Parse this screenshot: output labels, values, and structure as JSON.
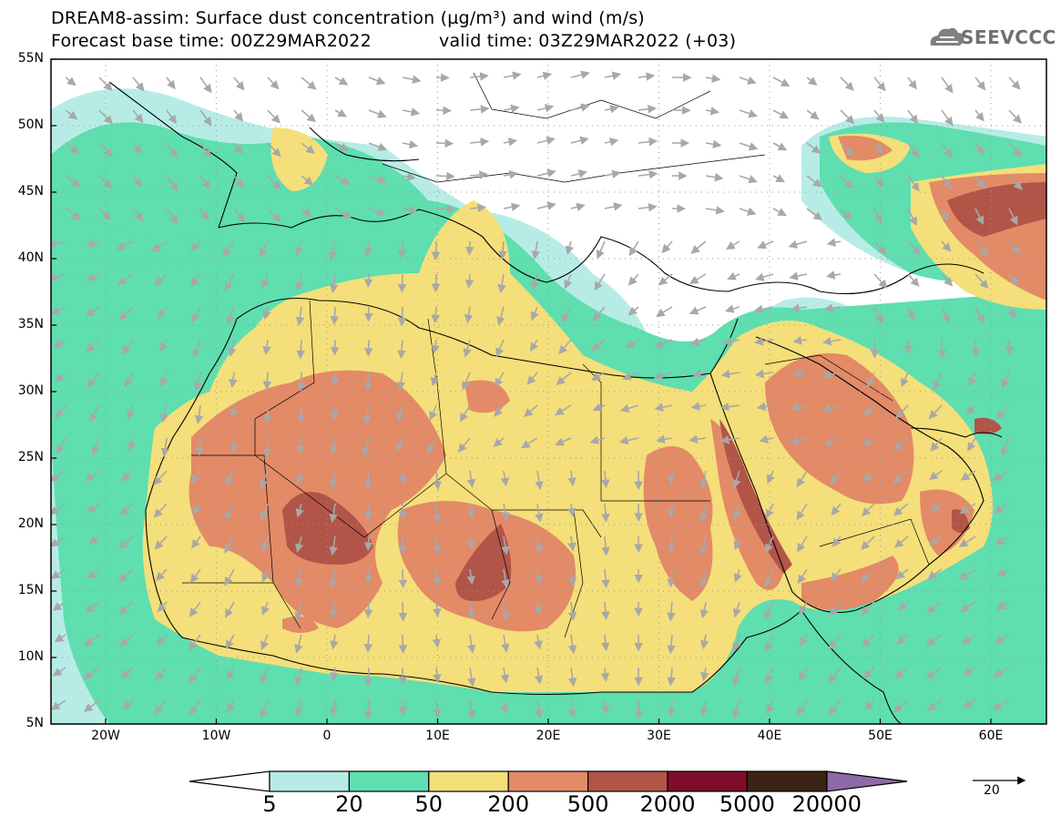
{
  "header": {
    "line1": "DREAM8-assim: Surface dust concentration (µg/m³) and wind (m/s)",
    "line2_left": "Forecast base time: 00Z29MAR2022",
    "line2_right": "valid time: 03Z29MAR2022 (+03)"
  },
  "logo": {
    "text": "SEEVCCC"
  },
  "axes": {
    "lat_labels": [
      "55N",
      "50N",
      "45N",
      "40N",
      "35N",
      "30N",
      "25N",
      "20N",
      "15N",
      "10N",
      "5N"
    ],
    "lon_labels": [
      "20W",
      "10W",
      "0",
      "10E",
      "20E",
      "30E",
      "40E",
      "50E",
      "60E"
    ]
  },
  "colorbar": {
    "labels": [
      "5",
      "20",
      "50",
      "200",
      "500",
      "2000",
      "5000",
      "20000"
    ],
    "colors": [
      "#b7ece6",
      "#5fdeb0",
      "#f4df7a",
      "#e38a67",
      "#b25548",
      "#7d0d2a",
      "#3b2413",
      "#8e6aa6"
    ]
  },
  "wind_reference": {
    "value": "20"
  }
}
